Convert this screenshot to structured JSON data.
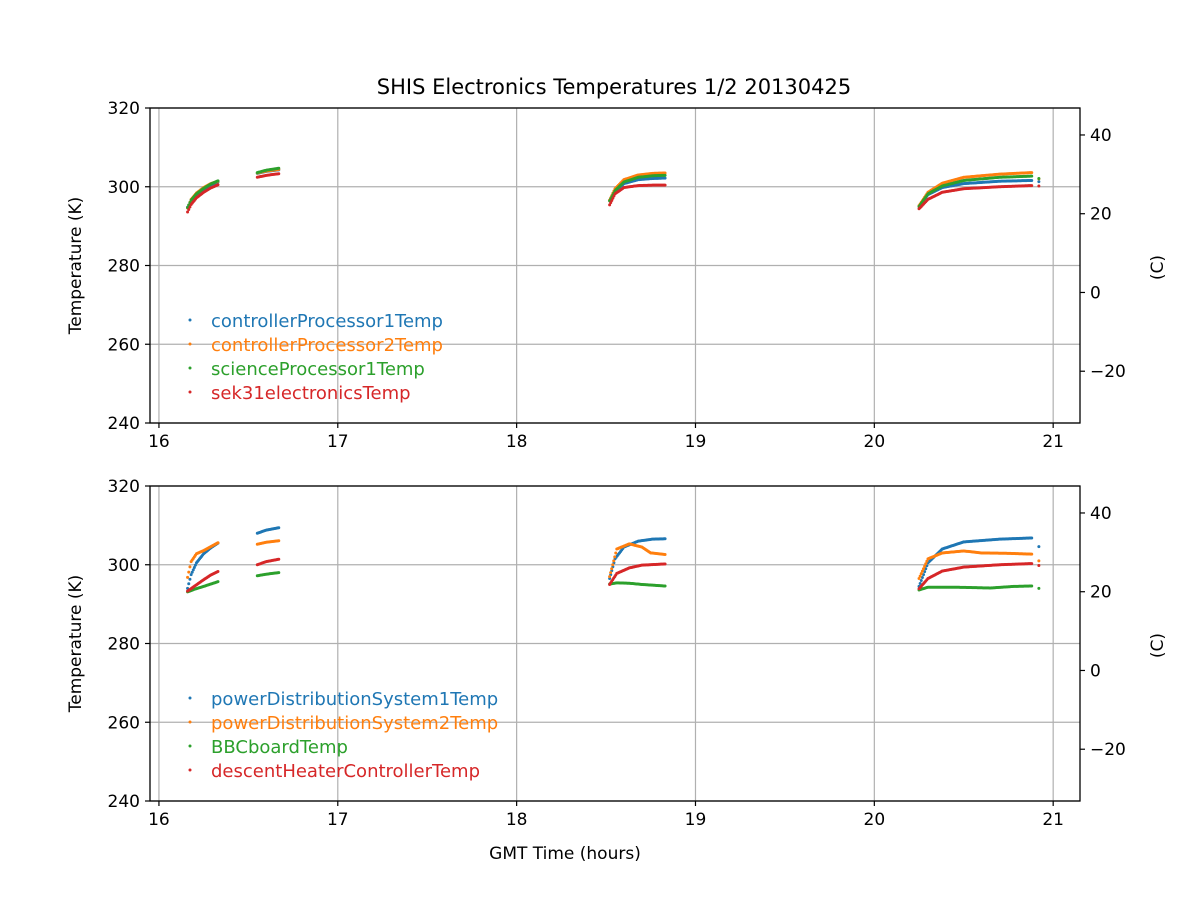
{
  "chart_data": {
    "title": "SHIS Electronics Temperatures 1/2 20130425",
    "type": "scatter",
    "panels": [
      {
        "xlabel": "",
        "ylabel": "Temperature (K)",
        "ylabel_right": "(C)",
        "xlim": [
          15.95,
          21.15
        ],
        "ylim": [
          240,
          320
        ],
        "xticks": [
          16,
          17,
          18,
          19,
          20,
          21
        ],
        "yticks": [
          240,
          260,
          280,
          300,
          320
        ],
        "yticks_right": [
          -20,
          0,
          20,
          40
        ],
        "grid": true,
        "legend_position": "lower-left",
        "series": [
          {
            "name": "controllerProcessor1Temp",
            "color": "#1f77b4",
            "segments": [
              [
                [
                  16.16,
                  294.8
                ],
                [
                  16.18,
                  296.5
                ],
                [
                  16.21,
                  298.0
                ],
                [
                  16.25,
                  299.4
                ],
                [
                  16.29,
                  300.5
                ],
                [
                  16.33,
                  301.2
                ]
              ],
              [
                [
                  16.55,
                  303.4
                ],
                [
                  16.6,
                  303.9
                ],
                [
                  16.67,
                  304.3
                ]
              ],
              [
                [
                  18.52,
                  296.5
                ],
                [
                  18.55,
                  298.8
                ],
                [
                  18.6,
                  300.8
                ],
                [
                  18.68,
                  301.8
                ],
                [
                  18.76,
                  302.1
                ],
                [
                  18.83,
                  302.2
                ]
              ],
              [
                [
                  20.25,
                  295.0
                ],
                [
                  20.3,
                  298.0
                ],
                [
                  20.38,
                  299.8
                ],
                [
                  20.5,
                  300.8
                ],
                [
                  20.7,
                  301.4
                ],
                [
                  20.88,
                  301.6
                ]
              ],
              [
                [
                  20.92,
                  301.3
                ]
              ]
            ]
          },
          {
            "name": "controllerProcessor2Temp",
            "color": "#ff7f0e",
            "segments": [
              [
                [
                  16.16,
                  294.6
                ],
                [
                  16.18,
                  296.8
                ],
                [
                  16.21,
                  298.4
                ],
                [
                  16.25,
                  299.8
                ],
                [
                  16.29,
                  300.8
                ],
                [
                  16.33,
                  301.4
                ]
              ],
              [
                [
                  16.55,
                  303.5
                ],
                [
                  16.6,
                  304.0
                ],
                [
                  16.67,
                  304.4
                ]
              ],
              [
                [
                  18.52,
                  296.6
                ],
                [
                  18.55,
                  299.5
                ],
                [
                  18.6,
                  301.8
                ],
                [
                  18.68,
                  303.0
                ],
                [
                  18.76,
                  303.4
                ],
                [
                  18.83,
                  303.5
                ]
              ],
              [
                [
                  20.25,
                  295.2
                ],
                [
                  20.3,
                  298.6
                ],
                [
                  20.38,
                  300.9
                ],
                [
                  20.5,
                  302.4
                ],
                [
                  20.7,
                  303.2
                ],
                [
                  20.88,
                  303.6
                ]
              ],
              [
                [
                  20.92,
                  302.0
                ]
              ]
            ]
          },
          {
            "name": "scienceProcessor1Temp",
            "color": "#2ca02c",
            "segments": [
              [
                [
                  16.16,
                  294.7
                ],
                [
                  16.18,
                  296.6
                ],
                [
                  16.21,
                  298.2
                ],
                [
                  16.25,
                  299.6
                ],
                [
                  16.29,
                  300.7
                ],
                [
                  16.33,
                  301.5
                ]
              ],
              [
                [
                  16.55,
                  303.6
                ],
                [
                  16.6,
                  304.2
                ],
                [
                  16.67,
                  304.7
                ]
              ],
              [
                [
                  18.52,
                  296.4
                ],
                [
                  18.55,
                  299.0
                ],
                [
                  18.6,
                  301.2
                ],
                [
                  18.68,
                  302.4
                ],
                [
                  18.76,
                  302.8
                ],
                [
                  18.83,
                  302.9
                ]
              ],
              [
                [
                  20.25,
                  295.0
                ],
                [
                  20.3,
                  298.2
                ],
                [
                  20.38,
                  300.2
                ],
                [
                  20.5,
                  301.6
                ],
                [
                  20.7,
                  302.4
                ],
                [
                  20.88,
                  302.7
                ]
              ],
              [
                [
                  20.92,
                  302.1
                ]
              ]
            ]
          },
          {
            "name": "sek31electronicsTemp",
            "color": "#d62728",
            "segments": [
              [
                [
                  16.16,
                  293.6
                ],
                [
                  16.18,
                  295.5
                ],
                [
                  16.21,
                  297.2
                ],
                [
                  16.25,
                  298.6
                ],
                [
                  16.29,
                  299.7
                ],
                [
                  16.33,
                  300.5
                ]
              ],
              [
                [
                  16.55,
                  302.4
                ],
                [
                  16.6,
                  302.9
                ],
                [
                  16.67,
                  303.3
                ]
              ],
              [
                [
                  18.52,
                  295.4
                ],
                [
                  18.55,
                  298.2
                ],
                [
                  18.6,
                  299.8
                ],
                [
                  18.68,
                  300.3
                ],
                [
                  18.76,
                  300.4
                ],
                [
                  18.83,
                  300.4
                ]
              ],
              [
                [
                  20.25,
                  294.4
                ],
                [
                  20.3,
                  296.8
                ],
                [
                  20.38,
                  298.6
                ],
                [
                  20.5,
                  299.5
                ],
                [
                  20.7,
                  300.0
                ],
                [
                  20.88,
                  300.3
                ]
              ],
              [
                [
                  20.92,
                  300.2
                ]
              ]
            ]
          }
        ]
      },
      {
        "xlabel": "GMT Time (hours)",
        "ylabel": "Temperature (K)",
        "ylabel_right": "(C)",
        "xlim": [
          15.95,
          21.15
        ],
        "ylim": [
          240,
          320
        ],
        "xticks": [
          16,
          17,
          18,
          19,
          20,
          21
        ],
        "yticks": [
          240,
          260,
          280,
          300,
          320
        ],
        "yticks_right": [
          -20,
          0,
          20,
          40
        ],
        "grid": true,
        "legend_position": "lower-left",
        "series": [
          {
            "name": "powerDistributionSystem1Temp",
            "color": "#1f77b4",
            "segments": [
              [
                [
                  16.16,
                  294.0
                ],
                [
                  16.18,
                  297.5
                ],
                [
                  16.21,
                  300.5
                ],
                [
                  16.25,
                  302.8
                ],
                [
                  16.29,
                  304.3
                ],
                [
                  16.33,
                  305.5
                ]
              ],
              [
                [
                  16.55,
                  308.0
                ],
                [
                  16.6,
                  308.8
                ],
                [
                  16.67,
                  309.4
                ]
              ],
              [
                [
                  18.52,
                  296.5
                ],
                [
                  18.55,
                  301.5
                ],
                [
                  18.6,
                  304.5
                ],
                [
                  18.68,
                  306.0
                ],
                [
                  18.76,
                  306.5
                ],
                [
                  18.83,
                  306.6
                ]
              ],
              [
                [
                  20.25,
                  294.5
                ],
                [
                  20.3,
                  300.5
                ],
                [
                  20.38,
                  304.0
                ],
                [
                  20.5,
                  305.8
                ],
                [
                  20.7,
                  306.5
                ],
                [
                  20.88,
                  306.8
                ]
              ],
              [
                [
                  20.92,
                  304.6
                ]
              ]
            ]
          },
          {
            "name": "powerDistributionSystem2Temp",
            "color": "#ff7f0e",
            "segments": [
              [
                [
                  16.16,
                  296.8
                ],
                [
                  16.18,
                  300.8
                ],
                [
                  16.21,
                  302.8
                ],
                [
                  16.25,
                  303.6
                ],
                [
                  16.29,
                  304.6
                ],
                [
                  16.33,
                  305.6
                ]
              ],
              [
                [
                  16.55,
                  305.2
                ],
                [
                  16.6,
                  305.7
                ],
                [
                  16.67,
                  306.1
                ]
              ],
              [
                [
                  18.52,
                  297.0
                ],
                [
                  18.56,
                  304.0
                ],
                [
                  18.63,
                  305.3
                ],
                [
                  18.7,
                  304.5
                ],
                [
                  18.75,
                  303.0
                ],
                [
                  18.83,
                  302.6
                ]
              ],
              [
                [
                  20.25,
                  296.5
                ],
                [
                  20.3,
                  301.5
                ],
                [
                  20.38,
                  303.0
                ],
                [
                  20.5,
                  303.5
                ],
                [
                  20.6,
                  303.0
                ],
                [
                  20.75,
                  302.9
                ],
                [
                  20.88,
                  302.7
                ]
              ],
              [
                [
                  20.92,
                  301.0
                ]
              ]
            ]
          },
          {
            "name": "BBCboardTemp",
            "color": "#2ca02c",
            "segments": [
              [
                [
                  16.16,
                  293.1
                ],
                [
                  16.2,
                  293.8
                ],
                [
                  16.25,
                  294.5
                ],
                [
                  16.29,
                  295.1
                ],
                [
                  16.33,
                  295.7
                ]
              ],
              [
                [
                  16.55,
                  297.2
                ],
                [
                  16.6,
                  297.6
                ],
                [
                  16.67,
                  298.0
                ]
              ],
              [
                [
                  18.52,
                  295.1
                ],
                [
                  18.56,
                  295.4
                ],
                [
                  18.63,
                  295.3
                ],
                [
                  18.7,
                  295.0
                ],
                [
                  18.83,
                  294.6
                ]
              ],
              [
                [
                  20.25,
                  293.6
                ],
                [
                  20.3,
                  294.3
                ],
                [
                  20.45,
                  294.3
                ],
                [
                  20.65,
                  294.1
                ],
                [
                  20.78,
                  294.5
                ],
                [
                  20.88,
                  294.6
                ]
              ],
              [
                [
                  20.92,
                  294.0
                ]
              ]
            ]
          },
          {
            "name": "descentHeaterControllerTemp",
            "color": "#d62728",
            "segments": [
              [
                [
                  16.16,
                  293.3
                ],
                [
                  16.2,
                  294.6
                ],
                [
                  16.25,
                  296.2
                ],
                [
                  16.29,
                  297.4
                ],
                [
                  16.33,
                  298.3
                ]
              ],
              [
                [
                  16.55,
                  300.0
                ],
                [
                  16.6,
                  300.8
                ],
                [
                  16.67,
                  301.4
                ]
              ],
              [
                [
                  18.52,
                  295.0
                ],
                [
                  18.56,
                  297.8
                ],
                [
                  18.63,
                  299.2
                ],
                [
                  18.7,
                  299.9
                ],
                [
                  18.83,
                  300.2
                ]
              ],
              [
                [
                  20.25,
                  293.9
                ],
                [
                  20.3,
                  296.5
                ],
                [
                  20.38,
                  298.4
                ],
                [
                  20.5,
                  299.4
                ],
                [
                  20.7,
                  300.0
                ],
                [
                  20.88,
                  300.3
                ]
              ],
              [
                [
                  20.92,
                  299.8
                ]
              ]
            ]
          }
        ]
      }
    ]
  }
}
